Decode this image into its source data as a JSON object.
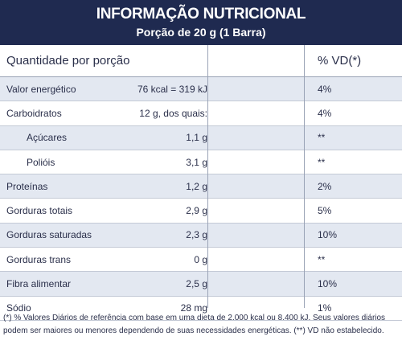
{
  "header": {
    "title": "INFORMAÇÃO NUTRICIONAL",
    "subtitle": "Porção de 20 g (1 Barra)"
  },
  "table": {
    "columns": [
      "Quantidade por porção",
      "",
      "% VD(*)"
    ],
    "rows": [
      {
        "name": "Valor energético",
        "amount": "76 kcal = 319 kJ",
        "vd": "4%",
        "indent": false
      },
      {
        "name": "Carboidratos",
        "amount": "12 g, dos quais:",
        "vd": "4%",
        "indent": false
      },
      {
        "name": "Açúcares",
        "amount": "1,1 g",
        "vd": "**",
        "indent": true
      },
      {
        "name": "Polióis",
        "amount": "3,1 g",
        "vd": "**",
        "indent": true
      },
      {
        "name": "Proteínas",
        "amount": "1,2 g",
        "vd": "2%",
        "indent": false
      },
      {
        "name": "Gorduras totais",
        "amount": "2,9 g",
        "vd": "5%",
        "indent": false
      },
      {
        "name": "Gorduras saturadas",
        "amount": "2,3 g",
        "vd": "10%",
        "indent": false
      },
      {
        "name": "Gorduras trans",
        "amount": "0 g",
        "vd": "**",
        "indent": false
      },
      {
        "name": "Fibra alimentar",
        "amount": "2,5 g",
        "vd": "10%",
        "indent": false
      },
      {
        "name": "Sódio",
        "amount": "28 mg",
        "vd": "1%",
        "indent": false
      }
    ]
  },
  "footnote": "(*) % Valores Diários de referência com base em uma dieta de 2.000 kcal ou 8.400 kJ. Seus valores diários podem ser maiores ou menores dependendo de suas necessidades energéticas. (**) VD não estabelecido.",
  "colors": {
    "header_bg": "#1f2a50",
    "row_alt": "#e3e8f1",
    "text": "#2a2f4a"
  }
}
